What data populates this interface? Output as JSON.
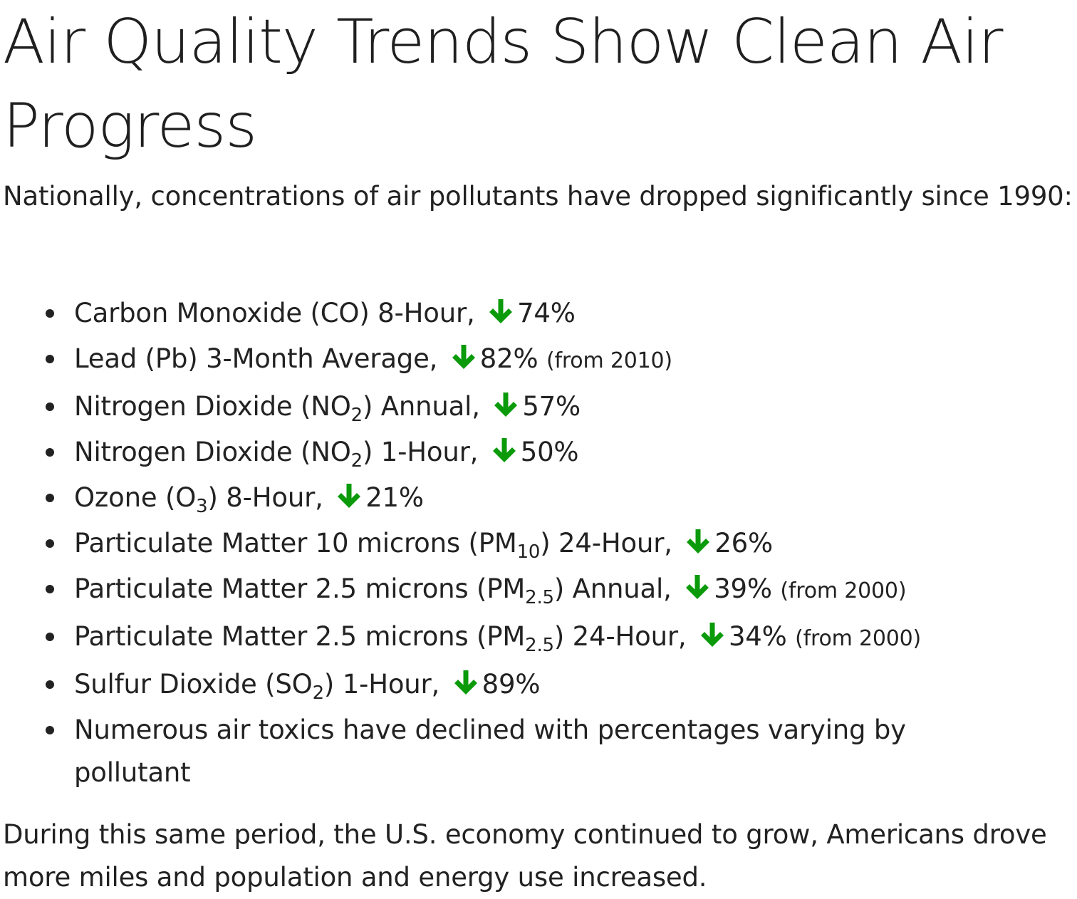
{
  "title": "Air Quality Trends Show Clean Air Progress",
  "intro": "Nationally, concentrations of air pollutants have dropped significantly since 1990:",
  "arrow_color": "#0a9a0a",
  "items": [
    {
      "pre": "Carbon Monoxide (CO) 8-Hour,",
      "value": "74%"
    },
    {
      "pre": "Lead (Pb) 3-Month Average,",
      "value": "82%",
      "note": "(from 2010)"
    },
    {
      "pre_a": "Nitrogen Dioxide (NO",
      "sub": "2",
      "pre_b": ") Annual,",
      "value": "57%"
    },
    {
      "pre_a": "Nitrogen Dioxide (NO",
      "sub": "2",
      "pre_b": ") 1-Hour,",
      "value": "50%"
    },
    {
      "pre_a": "Ozone (O",
      "sub": "3",
      "pre_b": ") 8-Hour,",
      "value": "21%"
    },
    {
      "pre_a": "Particulate Matter 10 microns (PM",
      "sub": "10",
      "pre_b": ") 24-Hour,",
      "value": "26%"
    },
    {
      "pre_a": "Particulate Matter 2.5 microns (PM",
      "sub": "2.5",
      "pre_b": ") Annual,",
      "value": "39%",
      "note": "(from 2000)"
    },
    {
      "pre_a": "Particulate Matter 2.5 microns (PM",
      "sub": "2.5",
      "pre_b": ") 24-Hour,",
      "value": "34%",
      "note": "(from 2000)"
    },
    {
      "pre_a": "Sulfur Dioxide (SO",
      "sub": "2",
      "pre_b": ") 1-Hour,",
      "value": "89%"
    },
    {
      "text": "Numerous air toxics have declined with percentages varying by pollutant"
    }
  ],
  "outro": "During this same period, the U.S. economy continued to grow, Americans drove more miles and population and energy use increased."
}
